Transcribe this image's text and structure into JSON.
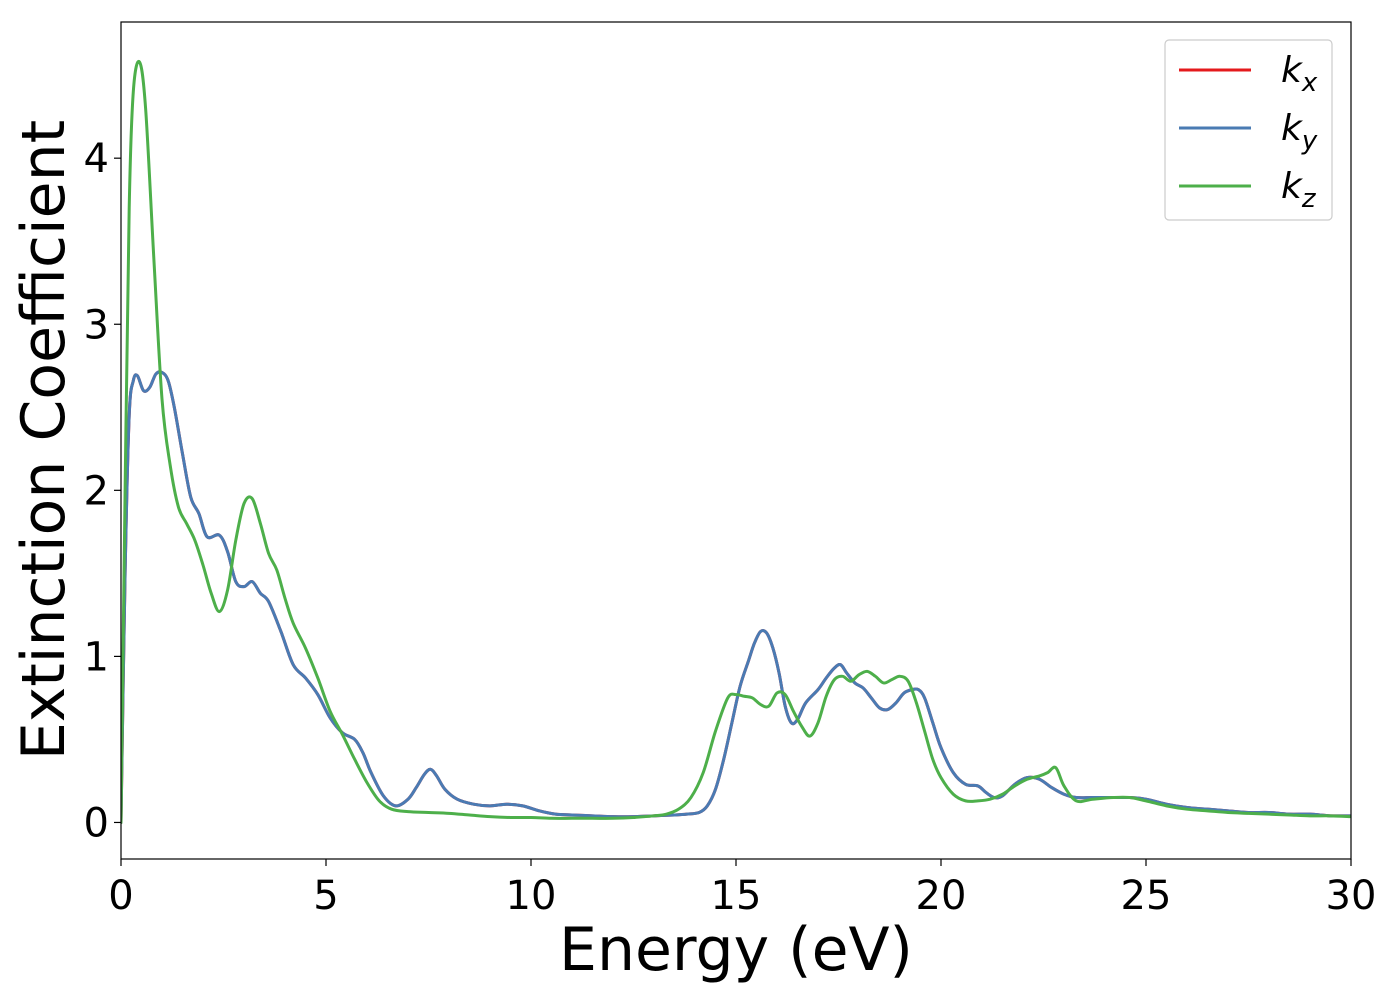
{
  "chart_data": {
    "type": "line",
    "title": "",
    "xlabel": "Energy (eV)",
    "ylabel": "Extinction Coefficient",
    "xlim": [
      0,
      30
    ],
    "ylim": [
      -0.22,
      4.82
    ],
    "xticks": [
      0,
      5,
      10,
      15,
      20,
      25,
      30
    ],
    "yticks": [
      0,
      1,
      2,
      3,
      4
    ],
    "grid": false,
    "legend_position": "top-right",
    "series": [
      {
        "name": "k_x",
        "legend_base": "k",
        "legend_sub": "x",
        "color": "#e41a1c",
        "x": [
          0,
          0.1,
          0.2,
          0.3,
          0.4,
          0.55,
          0.7,
          0.85,
          1.0,
          1.15,
          1.3,
          1.5,
          1.7,
          1.9,
          2.1,
          2.4,
          2.6,
          2.8,
          3.0,
          3.2,
          3.4,
          3.6,
          3.9,
          4.2,
          4.5,
          4.8,
          5.1,
          5.4,
          5.7,
          5.9,
          6.1,
          6.4,
          6.7,
          7.0,
          7.2,
          7.4,
          7.55,
          7.7,
          7.9,
          8.2,
          8.6,
          9.0,
          9.4,
          9.8,
          10.2,
          10.6,
          11.0,
          11.5,
          12.0,
          12.5,
          13.0,
          13.5,
          13.8,
          14.1,
          14.3,
          14.5,
          14.7,
          14.9,
          15.1,
          15.3,
          15.45,
          15.6,
          15.75,
          15.9,
          16.05,
          16.2,
          16.35,
          16.5,
          16.7,
          17.0,
          17.2,
          17.4,
          17.55,
          17.7,
          17.9,
          18.1,
          18.3,
          18.5,
          18.7,
          18.9,
          19.1,
          19.3,
          19.45,
          19.6,
          19.8,
          20.0,
          20.3,
          20.6,
          20.9,
          21.1,
          21.3,
          21.5,
          21.8,
          22.1,
          22.4,
          22.7,
          23.0,
          23.3,
          23.7,
          24.2,
          24.6,
          25.0,
          25.5,
          26.0,
          26.5,
          27.0,
          27.5,
          28.0,
          28.5,
          29.0,
          29.5,
          30.0
        ],
        "values": [
          0,
          1.5,
          2.45,
          2.66,
          2.69,
          2.6,
          2.62,
          2.7,
          2.71,
          2.66,
          2.5,
          2.22,
          1.96,
          1.86,
          1.72,
          1.73,
          1.63,
          1.45,
          1.42,
          1.45,
          1.38,
          1.33,
          1.15,
          0.95,
          0.87,
          0.77,
          0.63,
          0.54,
          0.5,
          0.42,
          0.3,
          0.16,
          0.1,
          0.14,
          0.21,
          0.29,
          0.32,
          0.28,
          0.2,
          0.14,
          0.11,
          0.1,
          0.11,
          0.1,
          0.07,
          0.05,
          0.045,
          0.04,
          0.035,
          0.035,
          0.04,
          0.045,
          0.05,
          0.06,
          0.1,
          0.2,
          0.38,
          0.6,
          0.82,
          0.97,
          1.08,
          1.15,
          1.14,
          1.05,
          0.9,
          0.7,
          0.6,
          0.62,
          0.72,
          0.8,
          0.87,
          0.93,
          0.95,
          0.9,
          0.84,
          0.81,
          0.75,
          0.69,
          0.68,
          0.72,
          0.78,
          0.8,
          0.8,
          0.75,
          0.6,
          0.45,
          0.3,
          0.23,
          0.22,
          0.18,
          0.15,
          0.16,
          0.23,
          0.27,
          0.26,
          0.21,
          0.17,
          0.15,
          0.15,
          0.15,
          0.15,
          0.14,
          0.11,
          0.09,
          0.08,
          0.07,
          0.06,
          0.06,
          0.05,
          0.05,
          0.04,
          0.04
        ]
      },
      {
        "name": "k_y",
        "legend_base": "k",
        "legend_sub": "y",
        "color": "#4a7bb3",
        "x": [
          0,
          0.1,
          0.2,
          0.3,
          0.4,
          0.55,
          0.7,
          0.85,
          1.0,
          1.15,
          1.3,
          1.5,
          1.7,
          1.9,
          2.1,
          2.4,
          2.6,
          2.8,
          3.0,
          3.2,
          3.4,
          3.6,
          3.9,
          4.2,
          4.5,
          4.8,
          5.1,
          5.4,
          5.7,
          5.9,
          6.1,
          6.4,
          6.7,
          7.0,
          7.2,
          7.4,
          7.55,
          7.7,
          7.9,
          8.2,
          8.6,
          9.0,
          9.4,
          9.8,
          10.2,
          10.6,
          11.0,
          11.5,
          12.0,
          12.5,
          13.0,
          13.5,
          13.8,
          14.1,
          14.3,
          14.5,
          14.7,
          14.9,
          15.1,
          15.3,
          15.45,
          15.6,
          15.75,
          15.9,
          16.05,
          16.2,
          16.35,
          16.5,
          16.7,
          17.0,
          17.2,
          17.4,
          17.55,
          17.7,
          17.9,
          18.1,
          18.3,
          18.5,
          18.7,
          18.9,
          19.1,
          19.3,
          19.45,
          19.6,
          19.8,
          20.0,
          20.3,
          20.6,
          20.9,
          21.1,
          21.3,
          21.5,
          21.8,
          22.1,
          22.4,
          22.7,
          23.0,
          23.3,
          23.7,
          24.2,
          24.6,
          25.0,
          25.5,
          26.0,
          26.5,
          27.0,
          27.5,
          28.0,
          28.5,
          29.0,
          29.5,
          30.0
        ],
        "values": [
          0,
          1.5,
          2.45,
          2.66,
          2.69,
          2.6,
          2.62,
          2.7,
          2.71,
          2.66,
          2.5,
          2.22,
          1.96,
          1.86,
          1.72,
          1.73,
          1.63,
          1.45,
          1.42,
          1.45,
          1.38,
          1.33,
          1.15,
          0.95,
          0.87,
          0.77,
          0.63,
          0.54,
          0.5,
          0.42,
          0.3,
          0.16,
          0.1,
          0.14,
          0.21,
          0.29,
          0.32,
          0.28,
          0.2,
          0.14,
          0.11,
          0.1,
          0.11,
          0.1,
          0.07,
          0.05,
          0.045,
          0.04,
          0.035,
          0.035,
          0.04,
          0.045,
          0.05,
          0.06,
          0.1,
          0.2,
          0.38,
          0.6,
          0.82,
          0.97,
          1.08,
          1.15,
          1.14,
          1.05,
          0.9,
          0.7,
          0.6,
          0.62,
          0.72,
          0.8,
          0.87,
          0.93,
          0.95,
          0.9,
          0.84,
          0.81,
          0.75,
          0.69,
          0.68,
          0.72,
          0.78,
          0.8,
          0.8,
          0.75,
          0.6,
          0.45,
          0.3,
          0.23,
          0.22,
          0.18,
          0.15,
          0.16,
          0.23,
          0.27,
          0.26,
          0.21,
          0.17,
          0.15,
          0.15,
          0.15,
          0.15,
          0.14,
          0.11,
          0.09,
          0.08,
          0.07,
          0.06,
          0.06,
          0.05,
          0.05,
          0.04,
          0.04
        ]
      },
      {
        "name": "k_z",
        "legend_base": "k",
        "legend_sub": "z",
        "color": "#4daf4a",
        "x": [
          0,
          0.1,
          0.2,
          0.3,
          0.45,
          0.6,
          0.8,
          1.0,
          1.2,
          1.4,
          1.6,
          1.8,
          2.0,
          2.2,
          2.4,
          2.6,
          2.8,
          3.0,
          3.2,
          3.4,
          3.6,
          3.8,
          4.0,
          4.2,
          4.5,
          4.8,
          5.1,
          5.4,
          5.7,
          6.0,
          6.3,
          6.6,
          7.0,
          7.5,
          8.0,
          8.5,
          9.0,
          9.5,
          10.0,
          10.5,
          11.0,
          11.5,
          12.0,
          12.5,
          13.0,
          13.3,
          13.6,
          13.9,
          14.2,
          14.5,
          14.8,
          15.0,
          15.2,
          15.4,
          15.6,
          15.8,
          16.0,
          16.2,
          16.4,
          16.6,
          16.8,
          17.0,
          17.2,
          17.4,
          17.6,
          17.8,
          18.0,
          18.2,
          18.4,
          18.6,
          18.8,
          19.0,
          19.2,
          19.4,
          19.6,
          19.8,
          20.0,
          20.3,
          20.6,
          20.9,
          21.2,
          21.5,
          21.8,
          22.1,
          22.4,
          22.6,
          22.8,
          23.0,
          23.3,
          23.7,
          24.2,
          24.6,
          25.0,
          25.5,
          26.0,
          26.5,
          27.0,
          27.5,
          28.0,
          28.5,
          29.0,
          29.5,
          30.0
        ],
        "values": [
          0,
          2.0,
          3.7,
          4.4,
          4.58,
          4.3,
          3.4,
          2.55,
          2.15,
          1.9,
          1.8,
          1.7,
          1.55,
          1.38,
          1.27,
          1.4,
          1.7,
          1.92,
          1.95,
          1.8,
          1.62,
          1.52,
          1.35,
          1.2,
          1.05,
          0.87,
          0.67,
          0.53,
          0.38,
          0.24,
          0.13,
          0.08,
          0.065,
          0.06,
          0.055,
          0.045,
          0.035,
          0.03,
          0.03,
          0.025,
          0.025,
          0.025,
          0.025,
          0.03,
          0.04,
          0.05,
          0.08,
          0.15,
          0.3,
          0.55,
          0.75,
          0.77,
          0.76,
          0.75,
          0.71,
          0.7,
          0.78,
          0.77,
          0.67,
          0.58,
          0.52,
          0.6,
          0.76,
          0.86,
          0.88,
          0.85,
          0.89,
          0.91,
          0.88,
          0.84,
          0.86,
          0.88,
          0.85,
          0.72,
          0.55,
          0.38,
          0.27,
          0.17,
          0.13,
          0.13,
          0.14,
          0.17,
          0.22,
          0.26,
          0.28,
          0.3,
          0.33,
          0.22,
          0.13,
          0.14,
          0.15,
          0.15,
          0.13,
          0.1,
          0.08,
          0.07,
          0.06,
          0.055,
          0.05,
          0.045,
          0.04,
          0.04,
          0.035
        ]
      }
    ]
  }
}
